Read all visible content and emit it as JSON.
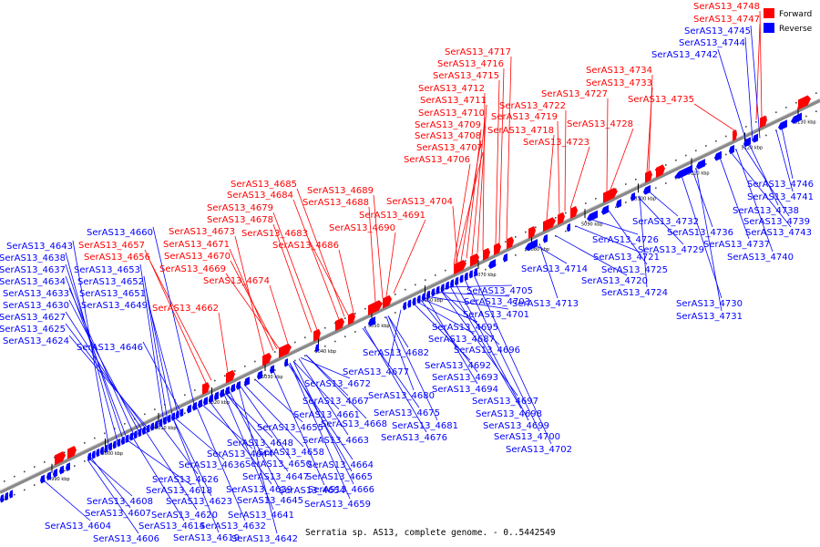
{
  "caption": "Serratia sp. AS13, complete genome. - 0..5442549",
  "legend": [
    {
      "label": "Forward",
      "color": "#ff0000"
    },
    {
      "label": "Reverse",
      "color": "#0000ff"
    }
  ],
  "colors": {
    "forward": "#ff0000",
    "reverse": "#0000ff",
    "leader_forward": "#ff0000",
    "leader_reverse": "#0000ff"
  },
  "ticks": [
    "4990 kbp",
    "5000 kbp",
    "5010 kbp",
    "5020 kbp",
    "5030 kbp",
    "5040 kbp",
    "5050 kbp",
    "5060 kbp",
    "5070 kbp",
    "5080 kbp",
    "5090 kbp",
    "5100 kbp",
    "5110 kbp",
    "5120 kbp",
    "5130 kbp"
  ],
  "forward_labels": [
    "SerAS13_4748",
    "SerAS13_4747",
    "SerAS13_4734",
    "SerAS13_4733",
    "SerAS13_4735",
    "SerAS13_4727",
    "SerAS13_4722",
    "SerAS13_4719",
    "SerAS13_4728",
    "SerAS13_4717",
    "SerAS13_4716",
    "SerAS13_4715",
    "SerAS13_4712",
    "SerAS13_4711",
    "SerAS13_4710",
    "SerAS13_4709",
    "SerAS13_4708",
    "SerAS13_4707",
    "SerAS13_4706",
    "SerAS13_4718",
    "SerAS13_4723",
    "SerAS13_4704",
    "SerAS13_4685",
    "SerAS13_4684",
    "SerAS13_4689",
    "SerAS13_4688",
    "SerAS13_4679",
    "SerAS13_4678",
    "SerAS13_4691",
    "SerAS13_4690",
    "SerAS13_4673",
    "SerAS13_4683",
    "SerAS13_4657",
    "SerAS13_4671",
    "SerAS13_4686",
    "SerAS13_4656",
    "SerAS13_4670",
    "SerAS13_4669",
    "SerAS13_4674",
    "SerAS13_4662"
  ],
  "reverse_labels_top": [
    "SerAS13_4745",
    "SerAS13_4744",
    "SerAS13_4742",
    "SerAS13_4660",
    "SerAS13_4643",
    "SerAS13_4638",
    "SerAS13_4637",
    "SerAS13_4653",
    "SerAS13_4634",
    "SerAS13_4652",
    "SerAS13_4633",
    "SerAS13_4651",
    "SerAS13_4630",
    "SerAS13_4649",
    "SerAS13_4627",
    "SerAS13_4625",
    "SerAS13_4624",
    "SerAS13_4646"
  ],
  "reverse_labels_bottom": [
    "SerAS13_4746",
    "SerAS13_4741",
    "SerAS13_4738",
    "SerAS13_4739",
    "SerAS13_4732",
    "SerAS13_4736",
    "SerAS13_4743",
    "SerAS13_4737",
    "SerAS13_4740",
    "SerAS13_4726",
    "SerAS13_4721",
    "SerAS13_4729",
    "SerAS13_4714",
    "SerAS13_4720",
    "SerAS13_4725",
    "SerAS13_4724",
    "SerAS13_4713",
    "SerAS13_4730",
    "SerAS13_4731",
    "SerAS13_4705",
    "SerAS13_4703",
    "SerAS13_4701",
    "SerAS13_4695",
    "SerAS13_4687",
    "SerAS13_4682",
    "SerAS13_4696",
    "SerAS13_4692",
    "SerAS13_4677",
    "SerAS13_4693",
    "SerAS13_4694",
    "SerAS13_4680",
    "SerAS13_4672",
    "SerAS13_4697",
    "SerAS13_4667",
    "SerAS13_4661",
    "SerAS13_4675",
    "SerAS13_4698",
    "SerAS13_4681",
    "SerAS13_4668",
    "SerAS13_4699",
    "SerAS13_4655",
    "SerAS13_4676",
    "SerAS13_4663",
    "SerAS13_4700",
    "SerAS13_4648",
    "SerAS13_4702",
    "SerAS13_4644",
    "SerAS13_4658",
    "SerAS13_4636",
    "SerAS13_4650",
    "SerAS13_4664",
    "SerAS13_4647",
    "SerAS13_4626",
    "SerAS13_4665",
    "SerAS13_4618",
    "SerAS13_4639",
    "SerAS13_4654",
    "SerAS13_4666",
    "SerAS13_4608",
    "SerAS13_4623",
    "SerAS13_4645",
    "SerAS13_4659",
    "SerAS13_4607",
    "SerAS13_4620",
    "SerAS13_4641",
    "SerAS13_4604",
    "SerAS13_4614",
    "SerAS13_4632",
    "SerAS13_4606",
    "SerAS13_4619",
    "SerAS13_4642"
  ]
}
